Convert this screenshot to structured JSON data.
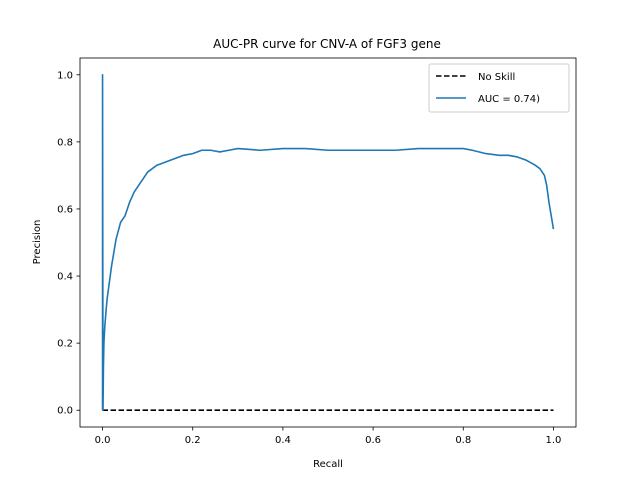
{
  "chart_data": {
    "type": "line",
    "title": "AUC-PR curve for CNV-A of FGF3 gene",
    "xlabel": "Recall",
    "ylabel": "Precision",
    "xlim": [
      -0.05,
      1.05
    ],
    "ylim": [
      -0.05,
      1.05
    ],
    "xticks": [
      "0.0",
      "0.2",
      "0.4",
      "0.6",
      "0.8",
      "1.0"
    ],
    "yticks": [
      "0.0",
      "0.2",
      "0.4",
      "0.6",
      "0.8",
      "1.0"
    ],
    "grid": false,
    "legend_position": "top-right",
    "series": [
      {
        "name": "No Skill",
        "style": "dashed",
        "color": "#000000",
        "x": [
          0,
          1
        ],
        "y": [
          0.0,
          0.0
        ]
      },
      {
        "name": "AUC = 0.74)",
        "style": "solid",
        "color": "#1f77b4",
        "x": [
          0,
          0,
          0.001,
          0.002,
          0.003,
          0.005,
          0.008,
          0.01,
          0.015,
          0.02,
          0.025,
          0.03,
          0.04,
          0.05,
          0.06,
          0.07,
          0.08,
          0.09,
          0.1,
          0.12,
          0.14,
          0.16,
          0.18,
          0.2,
          0.22,
          0.24,
          0.26,
          0.28,
          0.3,
          0.35,
          0.4,
          0.45,
          0.5,
          0.55,
          0.6,
          0.65,
          0.7,
          0.75,
          0.8,
          0.82,
          0.85,
          0.88,
          0.9,
          0.92,
          0.94,
          0.96,
          0.97,
          0.98,
          0.985,
          0.99,
          0.995,
          1.0
        ],
        "y": [
          0.0,
          1.0,
          0.0,
          0.13,
          0.2,
          0.25,
          0.3,
          0.33,
          0.38,
          0.43,
          0.47,
          0.51,
          0.56,
          0.58,
          0.62,
          0.65,
          0.67,
          0.69,
          0.71,
          0.73,
          0.74,
          0.75,
          0.76,
          0.765,
          0.775,
          0.775,
          0.77,
          0.775,
          0.78,
          0.775,
          0.78,
          0.78,
          0.775,
          0.775,
          0.775,
          0.775,
          0.78,
          0.78,
          0.78,
          0.775,
          0.765,
          0.76,
          0.76,
          0.755,
          0.745,
          0.73,
          0.72,
          0.7,
          0.67,
          0.62,
          0.58,
          0.54
        ]
      }
    ]
  }
}
